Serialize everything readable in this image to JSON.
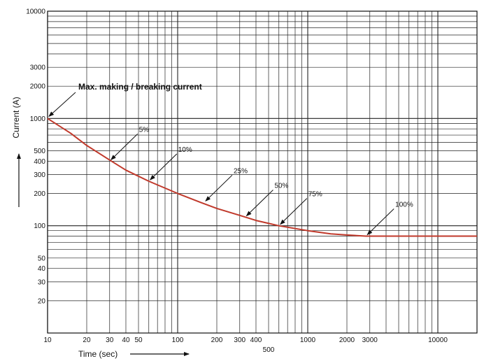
{
  "chart_data": {
    "type": "line",
    "x_scale": "log",
    "y_scale": "log",
    "xlabel": "Time (sec)",
    "ylabel": "Current (A)",
    "xlim": [
      10,
      20000
    ],
    "ylim": [
      10,
      10000
    ],
    "grid": true,
    "x_tick_labels": [
      {
        "value": 10,
        "label": "10"
      },
      {
        "value": 20,
        "label": "20"
      },
      {
        "value": 30,
        "label": "30"
      },
      {
        "value": 40,
        "label": "40"
      },
      {
        "value": 50,
        "label": "50"
      },
      {
        "value": 100,
        "label": "100"
      },
      {
        "value": 200,
        "label": "200"
      },
      {
        "value": 300,
        "label": "300"
      },
      {
        "value": 400,
        "label": "400"
      },
      {
        "value": 500,
        "label": "500"
      },
      {
        "value": 1000,
        "label": "1000"
      },
      {
        "value": 2000,
        "label": "2000"
      },
      {
        "value": 3000,
        "label": "3000"
      },
      {
        "value": 10000,
        "label": "10000"
      }
    ],
    "y_tick_labels": [
      {
        "value": 10000,
        "label": "10000"
      },
      {
        "value": 3000,
        "label": "3000"
      },
      {
        "value": 2000,
        "label": "2000"
      },
      {
        "value": 1000,
        "label": "1000"
      },
      {
        "value": 500,
        "label": "500"
      },
      {
        "value": 400,
        "label": "400"
      },
      {
        "value": 300,
        "label": "300"
      },
      {
        "value": 200,
        "label": "200"
      },
      {
        "value": 100,
        "label": "100"
      },
      {
        "value": 50,
        "label": "50"
      },
      {
        "value": 40,
        "label": "40"
      },
      {
        "value": 30,
        "label": "30"
      },
      {
        "value": 20,
        "label": "20"
      }
    ],
    "series": [
      {
        "color": "#c0392b",
        "x": [
          10,
          15,
          20,
          30,
          40,
          60,
          100,
          150,
          200,
          300,
          400,
          600,
          1000,
          1500,
          2000,
          2800,
          5000,
          10000,
          20000
        ],
        "y": [
          1000,
          730,
          560,
          410,
          330,
          260,
          200,
          165,
          145,
          125,
          112,
          100,
          90,
          84,
          82,
          80,
          80,
          80,
          80
        ]
      }
    ],
    "annotations": [
      {
        "text": "Max. making / breaking current",
        "x": 10,
        "y": 1000,
        "bold": true
      },
      {
        "text": "5%",
        "x": 30,
        "y": 400
      },
      {
        "text": "10%",
        "x": 60,
        "y": 260
      },
      {
        "text": "25%",
        "x": 160,
        "y": 165
      },
      {
        "text": "50%",
        "x": 330,
        "y": 120
      },
      {
        "text": "75%",
        "x": 600,
        "y": 100
      },
      {
        "text": "100%",
        "x": 2800,
        "y": 80
      }
    ]
  }
}
